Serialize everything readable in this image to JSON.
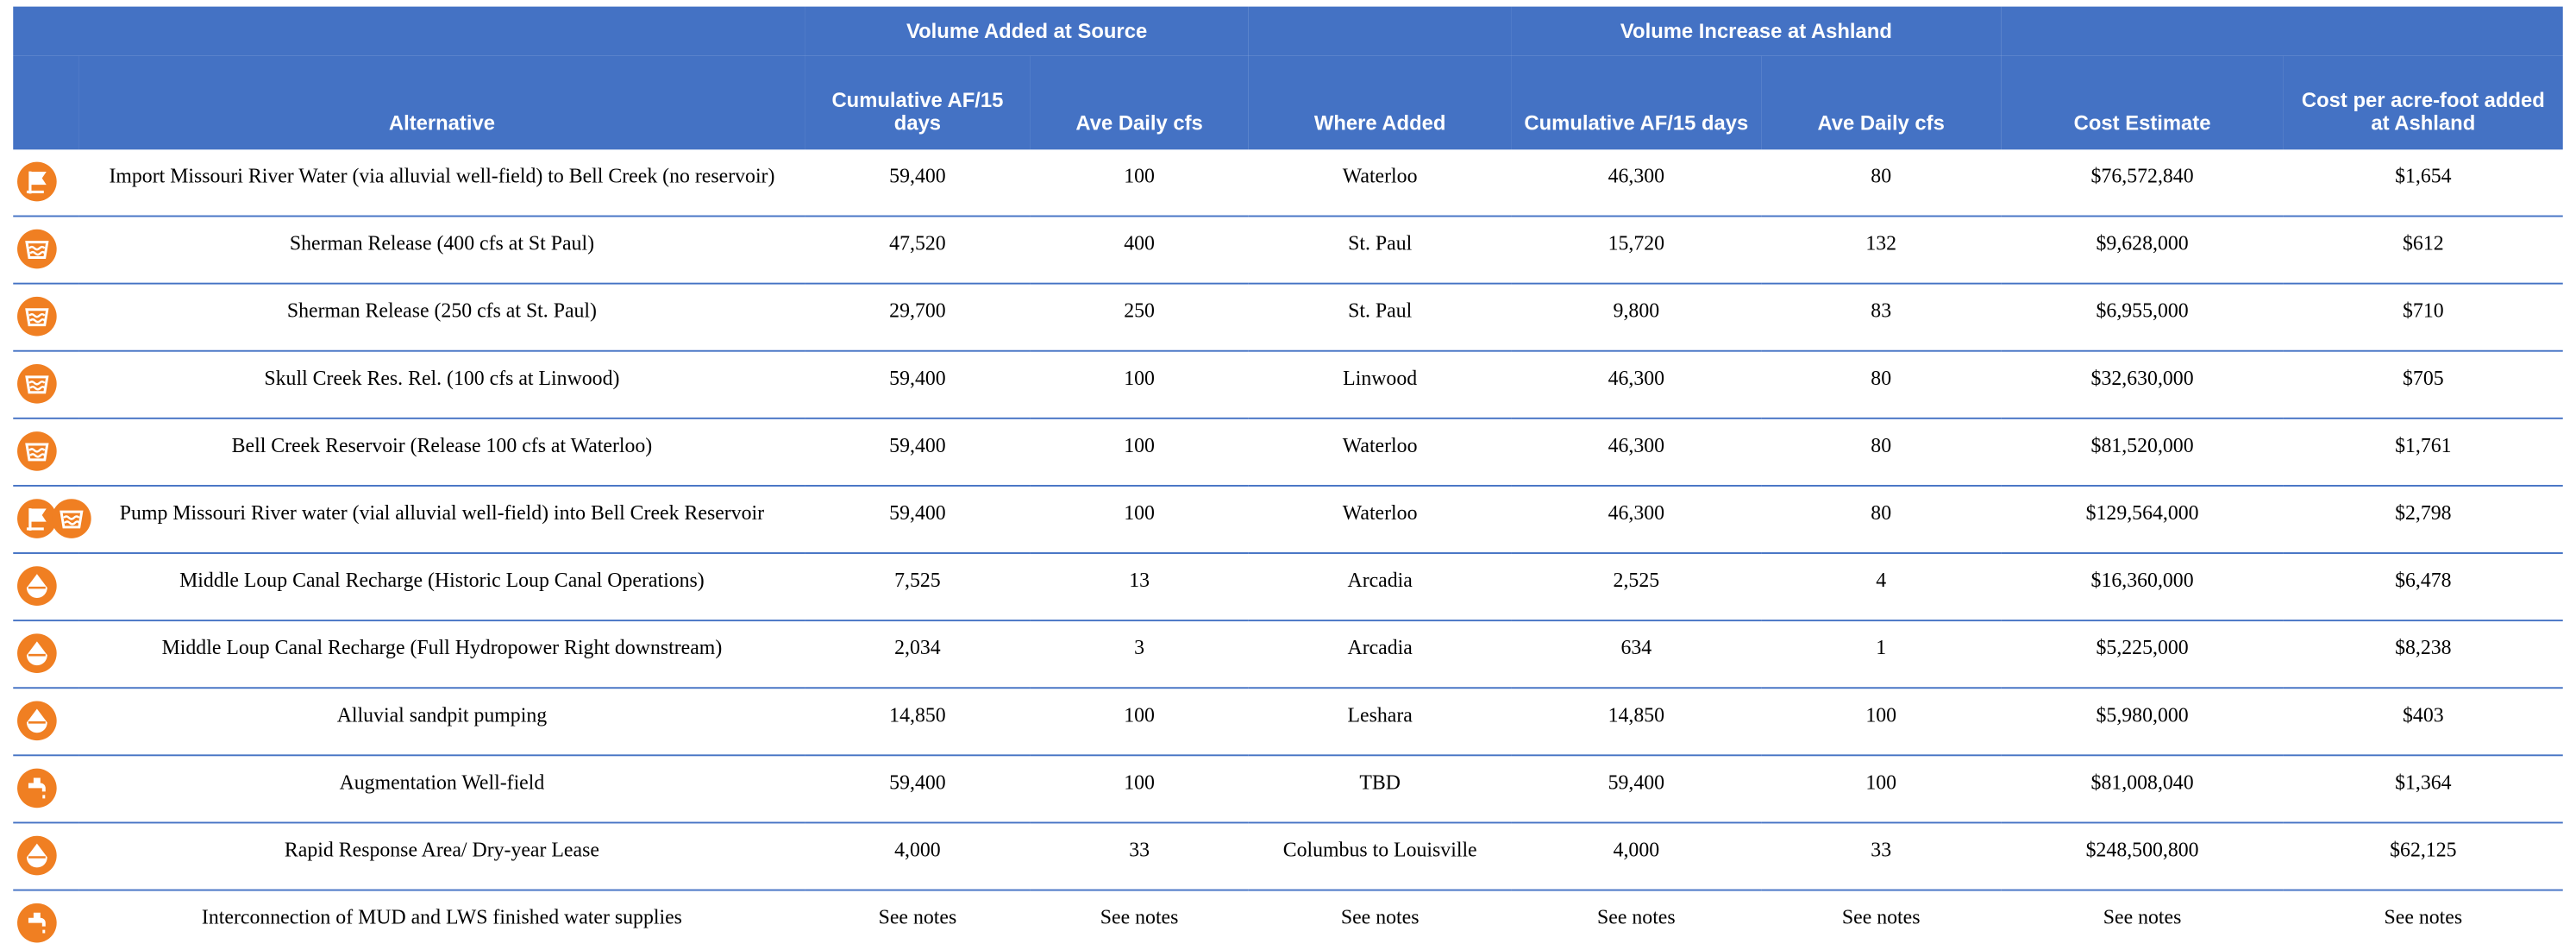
{
  "table": {
    "groups": [
      "Volume Added at Source",
      "Volume Increase at Ashland"
    ],
    "headers": [
      "Alternative",
      "Cumulative AF/15 days",
      "Ave Daily cfs",
      "Where Added",
      "Cumulative AF/15 days",
      "Ave Daily cfs",
      "Cost Estimate",
      "Cost per acre-foot added at Ashland"
    ],
    "rows": [
      [
        "Import Missouri River Water (via alluvial well-field) to Bell Creek (no reservoir)",
        "59,400",
        "100",
        "Waterloo",
        "46,300",
        "80",
        "$76,572,840",
        "$1,654"
      ],
      [
        "Sherman Release (400 cfs at St Paul)",
        "47,520",
        "400",
        "St. Paul",
        "15,720",
        "132",
        "$9,628,000",
        "$612"
      ],
      [
        "Sherman Release (250 cfs at St. Paul)",
        "29,700",
        "250",
        "St. Paul",
        "9,800",
        "83",
        "$6,955,000",
        "$710"
      ],
      [
        "Skull Creek Res. Rel. (100 cfs at Linwood)",
        "59,400",
        "100",
        "Linwood",
        "46,300",
        "80",
        "$32,630,000",
        "$705"
      ],
      [
        "Bell Creek Reservoir (Release 100 cfs at Waterloo)",
        "59,400",
        "100",
        "Waterloo",
        "46,300",
        "80",
        "$81,520,000",
        "$1,761"
      ],
      [
        "Pump Missouri River water (vial alluvial well-field) into Bell Creek Reservoir",
        "59,400",
        "100",
        "Waterloo",
        "46,300",
        "80",
        "$129,564,000",
        "$2,798"
      ],
      [
        "Middle Loup Canal Recharge (Historic Loup Canal Operations)",
        "7,525",
        "13",
        "Arcadia",
        "2,525",
        "4",
        "$16,360,000",
        "$6,478"
      ],
      [
        "Middle Loup Canal Recharge (Full Hydropower Right downstream)",
        "2,034",
        "3",
        "Arcadia",
        "634",
        "1",
        "$5,225,000",
        "$8,238"
      ],
      [
        "Alluvial sandpit pumping",
        "14,850",
        "100",
        "Leshara",
        "14,850",
        "100",
        "$5,980,000",
        "$403"
      ],
      [
        "Augmentation Well-field",
        "59,400",
        "100",
        "TBD",
        "59,400",
        "100",
        "$81,008,040",
        "$1,364"
      ],
      [
        "Rapid Response Area/ Dry-year Lease",
        "4,000",
        "33",
        "Columbus to Louisville",
        "4,000",
        "33",
        "$248,500,800",
        "$62,125"
      ],
      [
        "Interconnection of MUD and LWS finished water supplies",
        "See notes",
        "See notes",
        "See notes",
        "See notes",
        "See notes",
        "See notes",
        "See notes"
      ]
    ]
  }
}
